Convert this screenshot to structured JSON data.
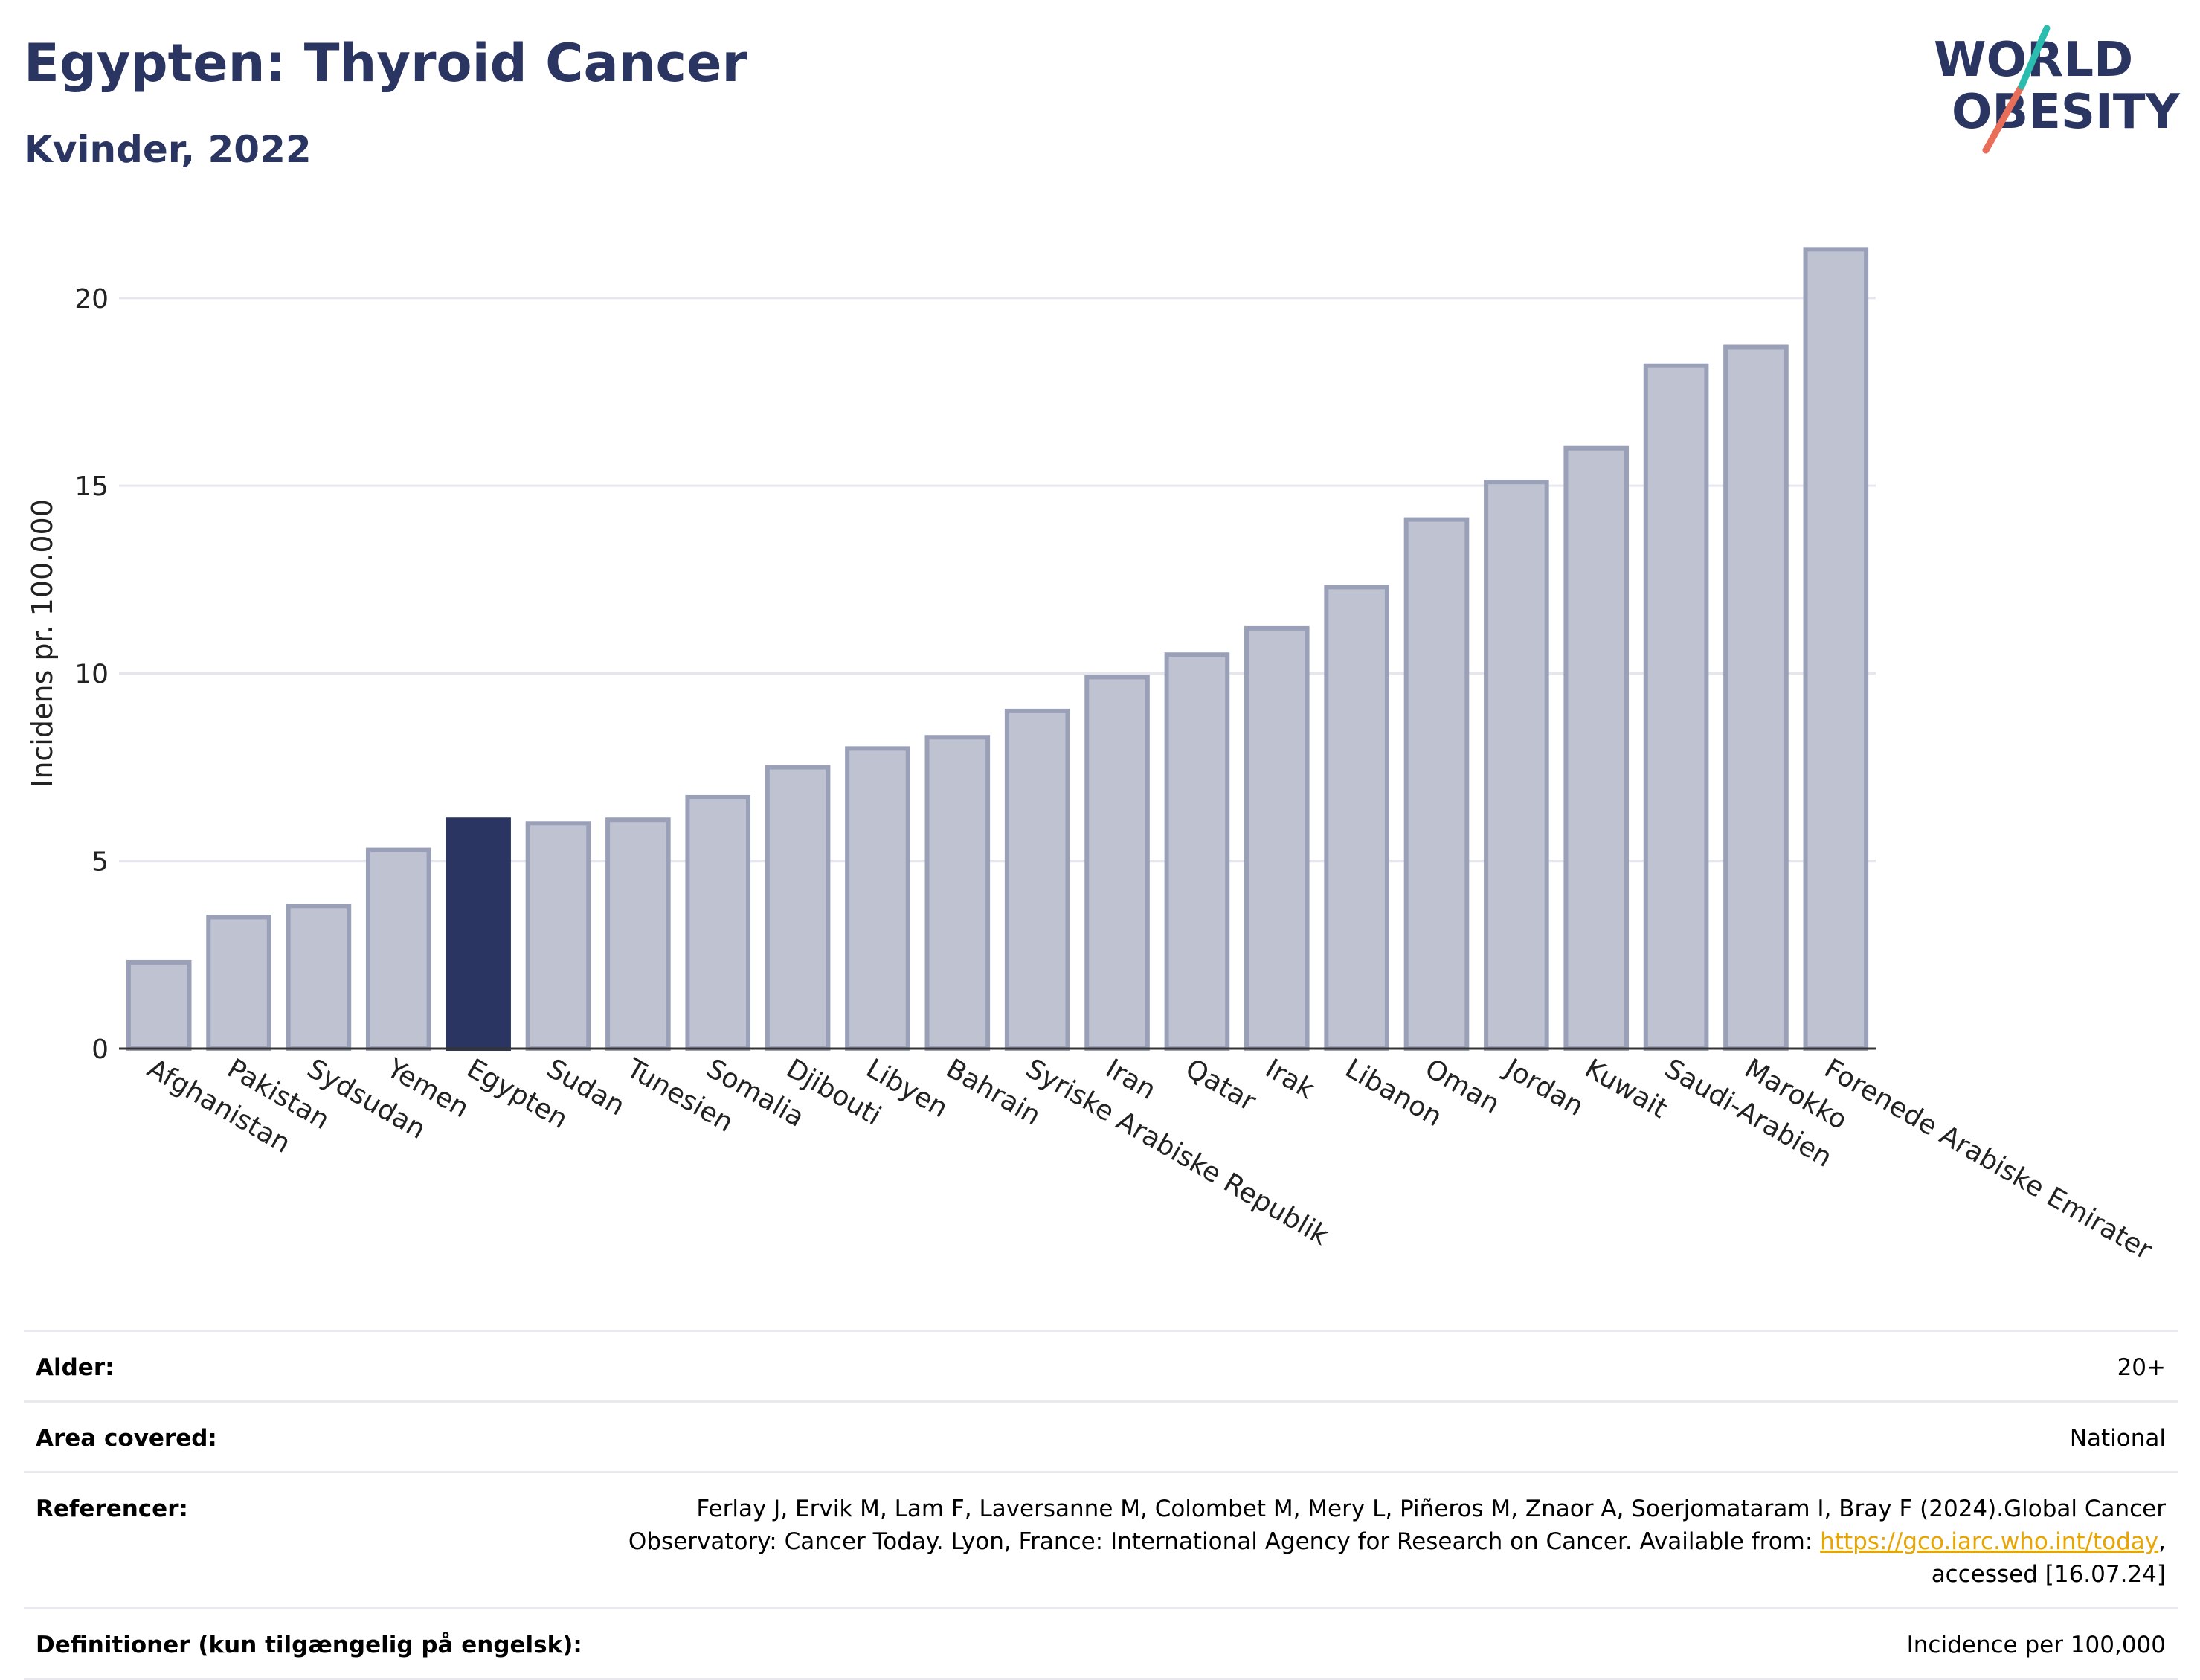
{
  "header": {
    "title": "Egypten: Thyroid Cancer",
    "subtitle": "Kvinder, 2022"
  },
  "logo": {
    "line1": "WORLD",
    "line2": "OBESITY"
  },
  "colors": {
    "highlight": "#2b3561",
    "bar": "#bfc2d0",
    "bar_edge": "#9aa0b8",
    "title": "#2b3561",
    "link": "#e8a400"
  },
  "chart_data": {
    "type": "bar",
    "ylabel": "Incidens pr. 100.000",
    "ylim": [
      0,
      22
    ],
    "yticks": [
      0,
      5,
      10,
      15,
      20
    ],
    "grid": true,
    "highlight": "Egypten",
    "categories": [
      "Afghanistan",
      "Pakistan",
      "Sydsudan",
      "Yemen",
      "Egypten",
      "Sudan",
      "Tunesien",
      "Somalia",
      "Djibouti",
      "Libyen",
      "Bahrain",
      "Syriske Arabiske Republik",
      "Iran",
      "Qatar",
      "Irak",
      "Libanon",
      "Oman",
      "Jordan",
      "Kuwait",
      "Saudi-Arabien",
      "Marokko",
      "Forenede Arabiske Emirater"
    ],
    "values": [
      2.3,
      3.5,
      3.8,
      5.3,
      6.1,
      6.0,
      6.1,
      6.7,
      7.5,
      8.0,
      8.3,
      9.0,
      9.9,
      10.5,
      11.2,
      12.3,
      14.1,
      15.1,
      16.0,
      18.2,
      18.7,
      21.3
    ]
  },
  "info": {
    "age_label": "Alder:",
    "age_value": "20+",
    "area_label": "Area covered:",
    "area_value": "National",
    "ref_label": "Referencer:",
    "ref_text_1": "Ferlay J, Ervik M, Lam F, Laversanne M, Colombet M, Mery L, Piñeros M, Znaor A, Soerjomataram I, Bray F (2024).Global Cancer",
    "ref_text_2": "Observatory: Cancer Today. Lyon, France: International Agency for Research on Cancer. Available from: ",
    "ref_link": "https://gco.iarc.who.int/today",
    "ref_text_3": ",",
    "ref_text_4": "accessed [16.07.24]",
    "def_label": "Definitioner (kun tilgængelig på engelsk):",
    "def_value": "Incidence per 100,000"
  }
}
